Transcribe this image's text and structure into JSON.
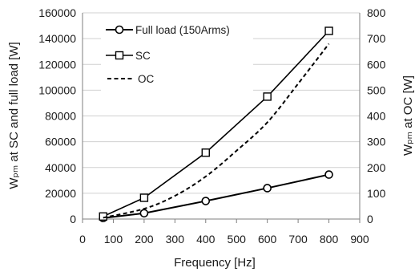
{
  "chart_data": {
    "type": "line",
    "title": "",
    "xlabel": "Frequency [Hz]",
    "ylabel_left": "Wₚₘ at SC and full load [W]",
    "ylabel_right": "Wₚₘ at OC [W]",
    "xlim": [
      0,
      900
    ],
    "ylim_left": [
      0,
      160000
    ],
    "ylim_right": [
      0,
      800
    ],
    "x_ticks": [
      "0",
      "100",
      "200",
      "300",
      "400",
      "500",
      "600",
      "700",
      "800",
      "900"
    ],
    "y_ticks_left": [
      "0",
      "20000",
      "40000",
      "60000",
      "80000",
      "100000",
      "120000",
      "140000",
      "160000"
    ],
    "y_ticks_right": [
      "0",
      "100",
      "200",
      "300",
      "400",
      "500",
      "600",
      "700",
      "800"
    ],
    "grid": true,
    "legend_position": "top-left",
    "series": [
      {
        "name": "Full load (150Arms)",
        "axis": "left",
        "marker": "circle",
        "line": "solid",
        "x": [
          67,
          200,
          400,
          600,
          800
        ],
        "y": [
          800,
          4500,
          14000,
          24000,
          34500
        ]
      },
      {
        "name": "SC",
        "axis": "left",
        "marker": "square",
        "line": "solid",
        "x": [
          67,
          200,
          400,
          600,
          800
        ],
        "y": [
          2000,
          16500,
          51500,
          95000,
          146000
        ]
      },
      {
        "name": "OC",
        "axis": "right",
        "marker": "none",
        "line": "dashed",
        "x": [
          67,
          200,
          300,
          400,
          500,
          600,
          700,
          800
        ],
        "y": [
          5,
          40,
          90,
          165,
          265,
          375,
          525,
          680
        ]
      }
    ]
  }
}
